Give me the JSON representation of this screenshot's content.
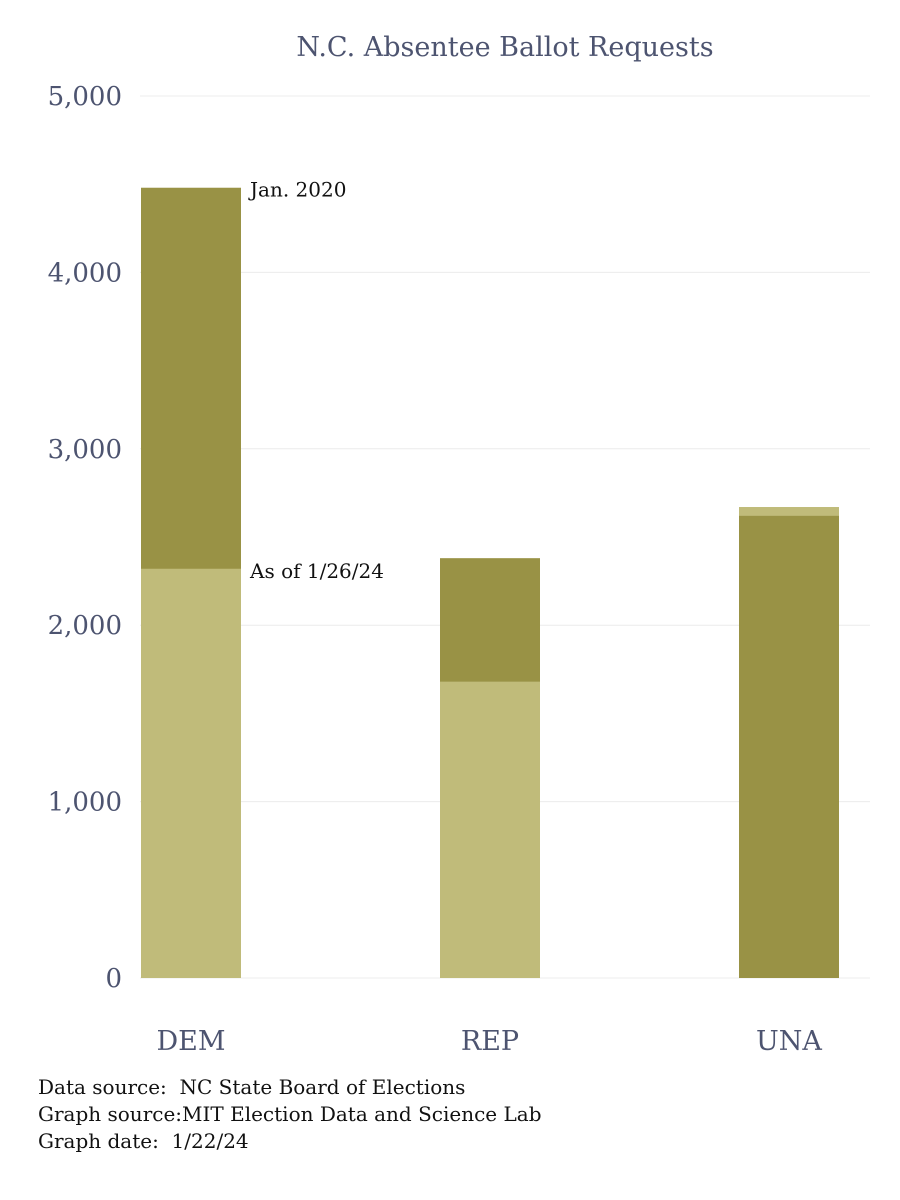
{
  "chart_data": {
    "type": "bar",
    "title": "N.C. Absentee Ballot Requests",
    "categories": [
      "DEM",
      "REP",
      "UNA"
    ],
    "series": [
      {
        "name": "Jan. 2020",
        "values": [
          4480,
          2380,
          2620
        ],
        "color": "#999245"
      },
      {
        "name": "As of 1/26/24",
        "values": [
          2320,
          1680,
          2670
        ],
        "color": "#c0bb7a"
      }
    ],
    "ylim": [
      0,
      5000
    ],
    "yticks": [
      0,
      1000,
      2000,
      3000,
      4000,
      5000
    ],
    "ytick_labels": [
      "0",
      "1,000",
      "2,000",
      "3,000",
      "4,000",
      "5,000"
    ],
    "grid": true,
    "xlabel": "",
    "ylabel": ""
  },
  "footer": {
    "data_source": "Data source:  NC State Board of Elections",
    "graph_source": "Graph source:MIT Election Data and Science Lab",
    "graph_date": "Graph date:  1/22/24"
  },
  "colors": {
    "axis_text": "#4d5470",
    "grid": "#ececec",
    "annotation_text": "#111111"
  }
}
